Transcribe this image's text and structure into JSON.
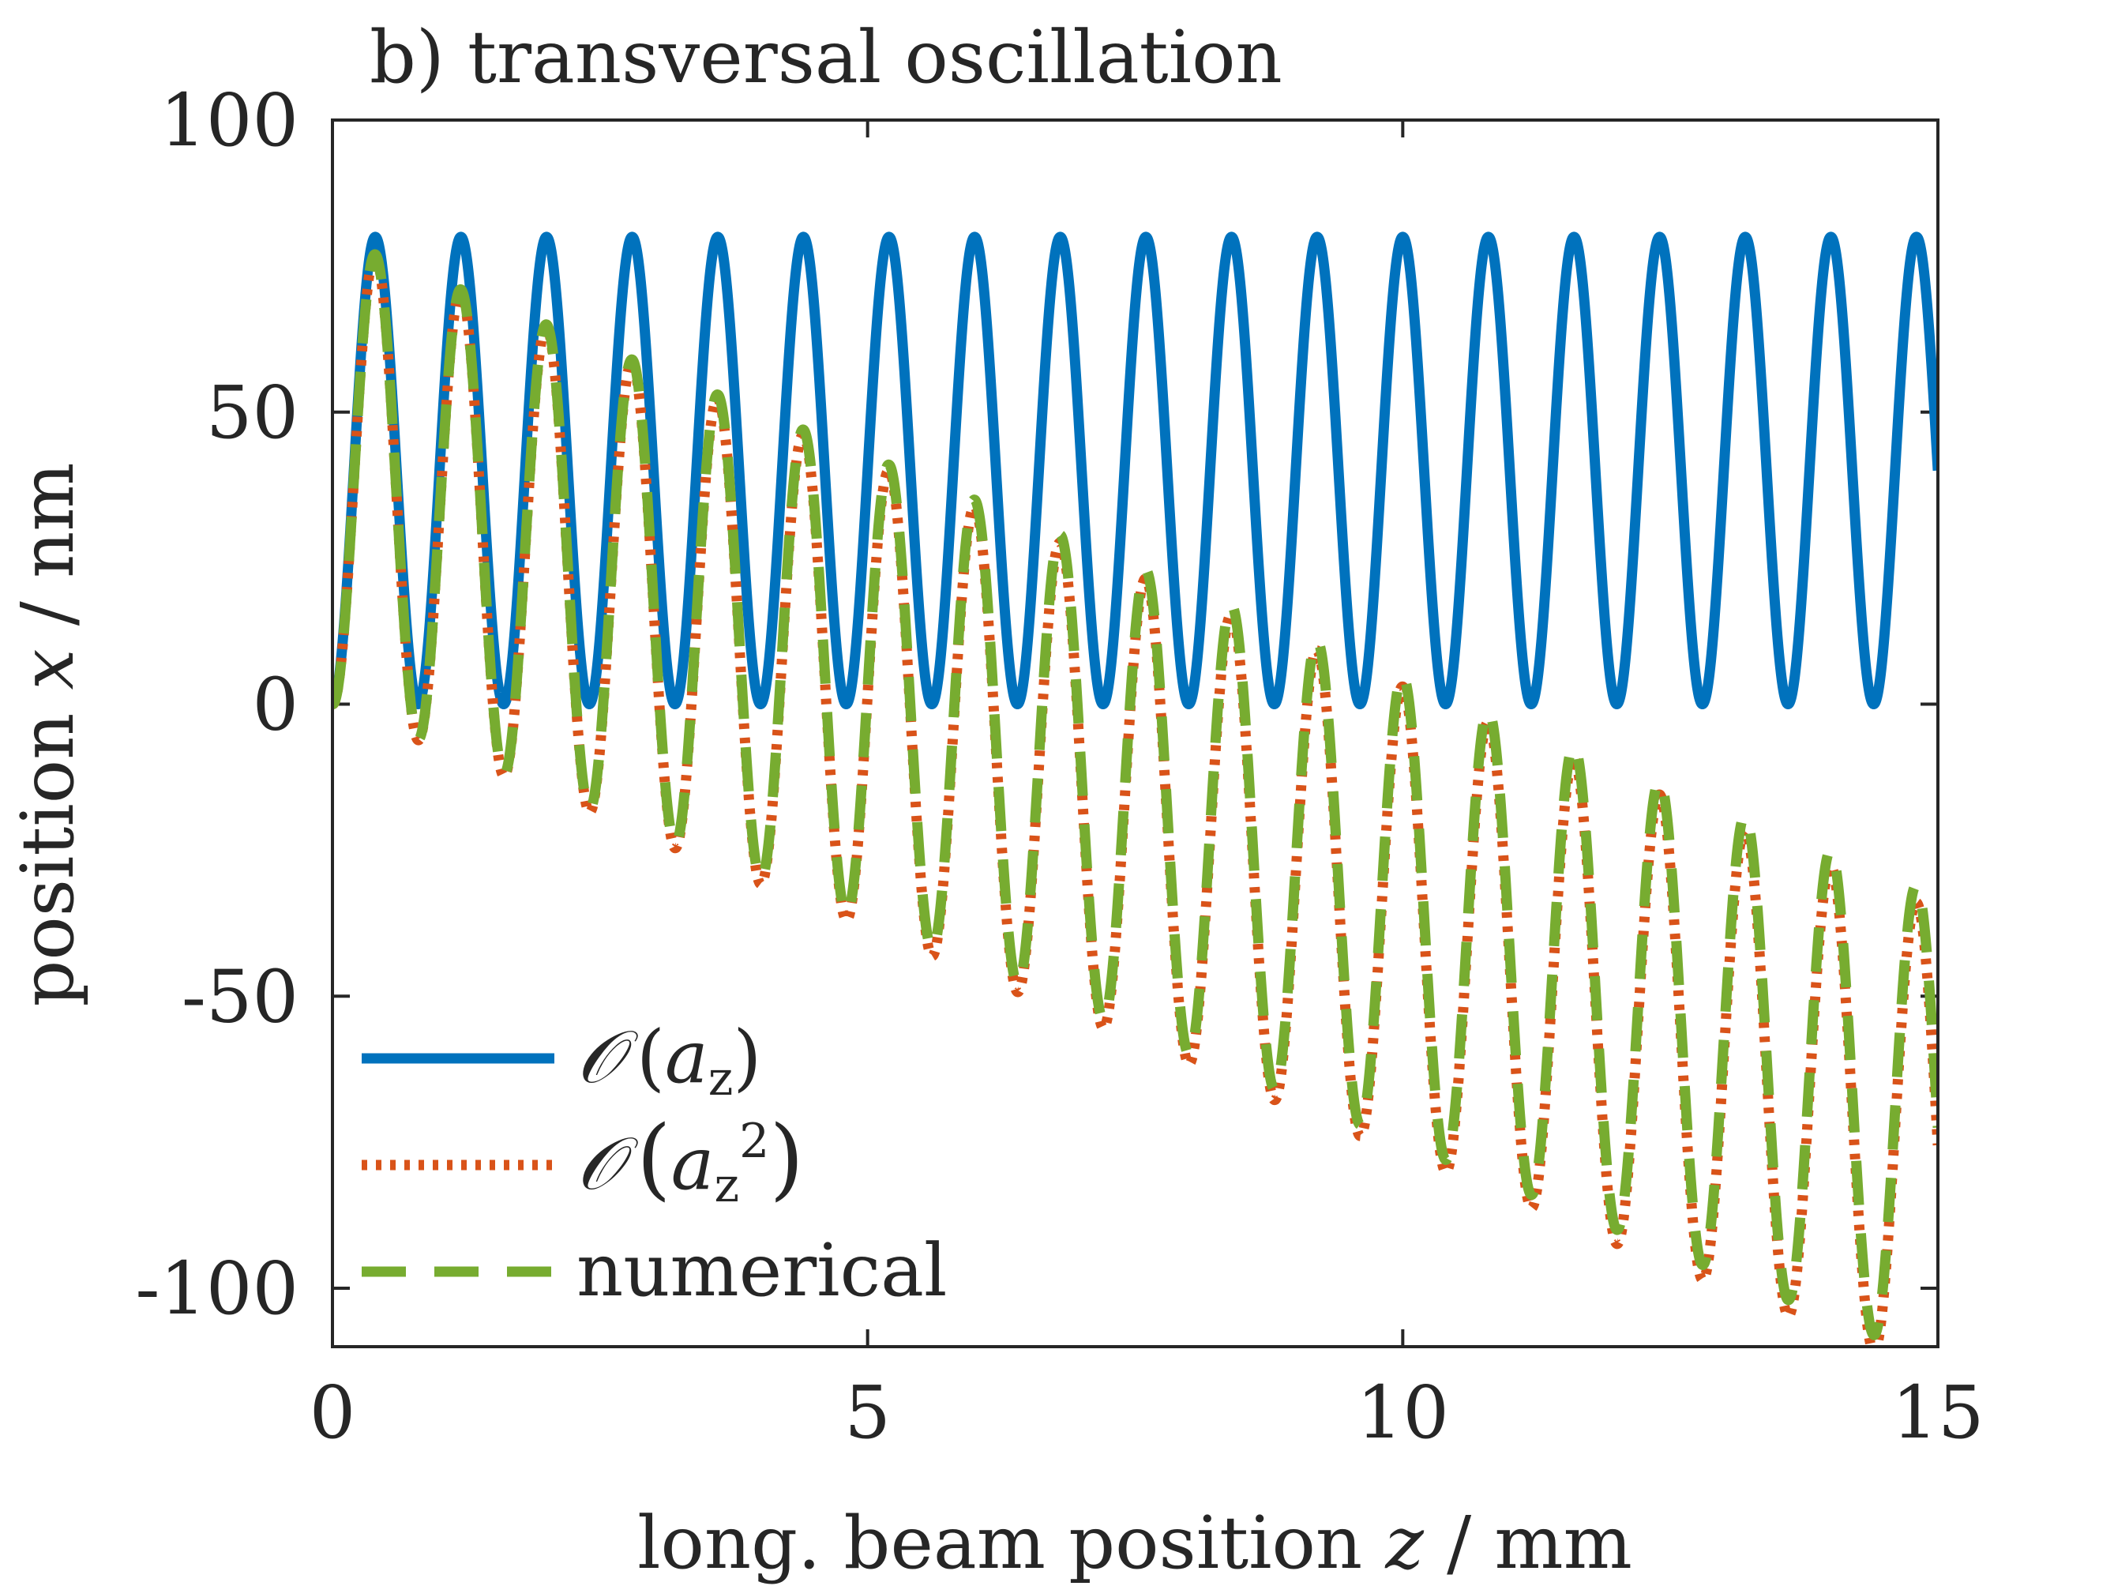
{
  "chart_data": {
    "type": "line",
    "title": "b) transversal oscillation",
    "xlabel": {
      "pre": "long. beam position ",
      "var": "z",
      "post": " / mm"
    },
    "ylabel": {
      "pre": "position ",
      "var": "x",
      "post": " / nm"
    },
    "xlim": [
      0,
      15
    ],
    "ylim": [
      -110,
      100
    ],
    "xticks": [
      0,
      5,
      10,
      15
    ],
    "xtick_labels": [
      "0",
      "5",
      "10",
      "15"
    ],
    "yticks": [
      -100,
      -50,
      0,
      50,
      100
    ],
    "ytick_labels": [
      "-100",
      "-50",
      "0",
      "50",
      "100"
    ],
    "grid": false,
    "legend": {
      "position": "bottom-left",
      "entries": [
        {
          "series": "first_order",
          "sym": "𝒪",
          "open": "(",
          "base": "a",
          "sub": "z",
          "sup": "",
          "close": ")"
        },
        {
          "series": "second_order",
          "sym": "𝒪",
          "open": "(",
          "base": "a",
          "sub": "z",
          "sup": "2",
          "close": ")"
        },
        {
          "series": "numerical",
          "text": "numerical"
        }
      ]
    },
    "series": [
      {
        "id": "first_order",
        "name": "O(a_z)",
        "color": "#0072BD",
        "style": "solid",
        "model": {
          "amplitude": 40,
          "offset": 40,
          "period_mm": 0.8,
          "drift_nm_per_mm": 0
        },
        "peaks": [
          {
            "z": 0.4,
            "x": 80
          },
          {
            "z": 15.0,
            "x": 40
          }
        ],
        "troughs": [
          {
            "z": 0.8,
            "x": 0
          },
          {
            "z": 14.4,
            "x": 0
          }
        ]
      },
      {
        "id": "second_order",
        "name": "O(a_z^2)",
        "color": "#D95319",
        "style": "dotted",
        "model": {
          "amplitude": 40,
          "offset": 40,
          "period_mm": 0.8,
          "drift_nm_per_mm": -7.7
        },
        "peaks": [
          {
            "z": 0.4,
            "x": 74
          },
          {
            "z": 8.4,
            "x": 12
          },
          {
            "z": 14.8,
            "x": -37
          }
        ],
        "troughs": [
          {
            "z": 0.8,
            "x": -4
          },
          {
            "z": 8.8,
            "x": -68
          },
          {
            "z": 14.4,
            "x": -113
          }
        ]
      },
      {
        "id": "numerical",
        "name": "numerical",
        "color": "#77AC30",
        "style": "dashed",
        "model": {
          "amplitude": 40,
          "offset": 40,
          "period_mm": 0.8,
          "drift_nm_per_mm": -7.5
        },
        "peaks": [
          {
            "z": 0.42,
            "x": 77
          },
          {
            "z": 8.42,
            "x": 14
          },
          {
            "z": 14.82,
            "x": -35
          }
        ],
        "troughs": [
          {
            "z": 0.82,
            "x": -6
          },
          {
            "z": 8.82,
            "x": -66
          },
          {
            "z": 14.42,
            "x": -111
          }
        ]
      }
    ]
  }
}
